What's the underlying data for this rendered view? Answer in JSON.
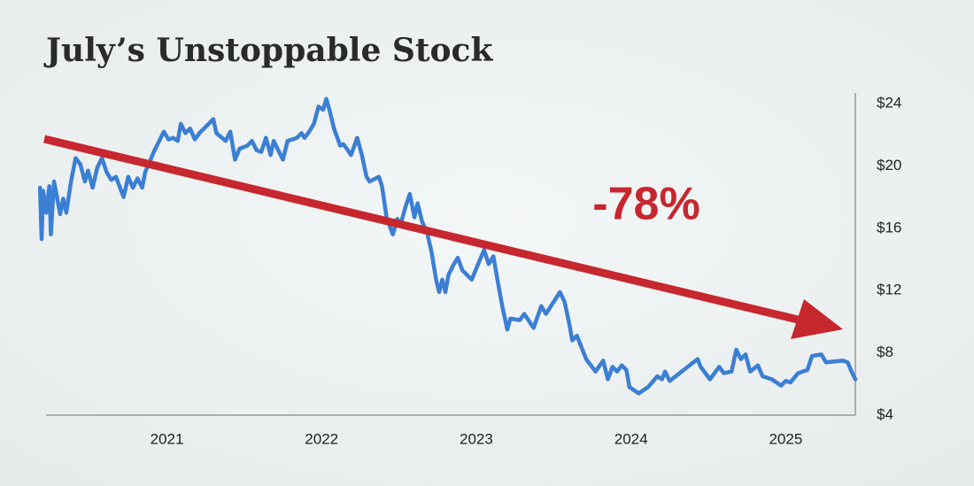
{
  "chart_data": {
    "type": "line",
    "title": "July’s Unstoppable Stock",
    "annotation": "-78%",
    "color": "#3b7fd4",
    "x": [
      2020.18,
      2020.19,
      2020.2,
      2020.22,
      2020.24,
      2020.25,
      2020.27,
      2020.31,
      2020.33,
      2020.35,
      2020.38,
      2020.41,
      2020.44,
      2020.47,
      2020.49,
      2020.52,
      2020.55,
      2020.58,
      2020.61,
      2020.64,
      2020.67,
      2020.72,
      2020.75,
      2020.78,
      2020.81,
      2020.84,
      2020.86,
      2020.89,
      2020.92,
      2020.95,
      2020.98,
      2021.01,
      2021.04,
      2021.07,
      2021.09,
      2021.12,
      2021.15,
      2021.18,
      2021.21,
      2021.27,
      2021.3,
      2021.32,
      2021.38,
      2021.41,
      2021.44,
      2021.47,
      2021.52,
      2021.55,
      2021.58,
      2021.61,
      2021.64,
      2021.67,
      2021.69,
      2021.72,
      2021.75,
      2021.78,
      2021.84,
      2021.87,
      2021.89,
      2021.92,
      2021.95,
      2021.98,
      2022.01,
      2022.03,
      2022.05,
      2022.08,
      2022.12,
      2022.14,
      2022.17,
      2022.19,
      2022.23,
      2022.26,
      2022.29,
      2022.31,
      2022.37,
      2022.39,
      2022.42,
      2022.46,
      2022.49,
      2022.51,
      2022.54,
      2022.57,
      2022.6,
      2022.62,
      2022.65,
      2022.68,
      2022.71,
      2022.74,
      2022.76,
      2022.78,
      2022.8,
      2022.82,
      2022.85,
      2022.88,
      2022.91,
      2022.97,
      2023.02,
      2023.05,
      2023.08,
      2023.11,
      2023.14,
      2023.17,
      2023.2,
      2023.22,
      2023.28,
      2023.31,
      2023.37,
      2023.42,
      2023.45,
      2023.54,
      2023.57,
      2023.6,
      2023.62,
      2023.65,
      2023.71,
      2023.77,
      2023.82,
      2023.85,
      2023.88,
      2023.91,
      2023.94,
      2023.97,
      2023.99,
      2024.05,
      2024.11,
      2024.17,
      2024.2,
      2024.22,
      2024.25,
      2024.34,
      2024.43,
      2024.45,
      2024.51,
      2024.57,
      2024.6,
      2024.65,
      2024.68,
      2024.71,
      2024.74,
      2024.77,
      2024.82,
      2024.85,
      2024.91,
      2024.97,
      2025.0,
      2025.03,
      2025.08,
      2025.14,
      2025.17,
      2025.23,
      2025.26,
      2025.37,
      2025.4,
      2025.43,
      2025.45
    ],
    "values": [
      18.6,
      15.3,
      18.4,
      17.0,
      18.7,
      15.6,
      19.0,
      16.9,
      17.9,
      17.0,
      19.0,
      20.5,
      20.1,
      19.0,
      19.7,
      18.6,
      19.9,
      20.5,
      19.6,
      19.1,
      19.3,
      18.0,
      19.3,
      18.6,
      19.2,
      18.6,
      19.6,
      20.3,
      21.0,
      21.6,
      22.2,
      21.7,
      21.8,
      21.6,
      22.7,
      22.1,
      22.4,
      21.7,
      22.1,
      22.7,
      23.0,
      22.1,
      21.6,
      22.2,
      20.4,
      21.1,
      21.3,
      21.6,
      21.0,
      20.9,
      21.8,
      20.7,
      21.6,
      21.0,
      20.4,
      21.6,
      21.8,
      22.1,
      21.8,
      22.2,
      22.7,
      23.8,
      23.6,
      24.3,
      23.6,
      22.4,
      21.3,
      21.4,
      21.0,
      20.7,
      21.8,
      20.7,
      19.3,
      19.0,
      19.3,
      18.7,
      16.7,
      15.6,
      16.6,
      16.2,
      17.3,
      18.2,
      16.7,
      17.6,
      16.4,
      15.8,
      14.5,
      12.7,
      11.9,
      12.7,
      11.9,
      13.0,
      13.6,
      14.1,
      13.3,
      12.7,
      13.9,
      14.6,
      13.7,
      14.2,
      12.5,
      10.9,
      9.5,
      10.2,
      10.1,
      10.5,
      9.6,
      11.0,
      10.5,
      11.9,
      11.3,
      9.9,
      8.8,
      9.1,
      7.6,
      6.8,
      7.5,
      6.3,
      7.1,
      6.8,
      7.2,
      6.9,
      5.8,
      5.4,
      5.8,
      6.5,
      6.3,
      6.8,
      6.2,
      6.9,
      7.6,
      7.1,
      6.3,
      7.1,
      6.7,
      6.8,
      8.2,
      7.6,
      7.9,
      6.8,
      7.2,
      6.5,
      6.3,
      5.9,
      6.2,
      6.1,
      6.7,
      6.9,
      7.8,
      7.9,
      7.4,
      7.5,
      7.4,
      6.7,
      6.3
    ],
    "xlim": [
      2020.15,
      2025.45
    ],
    "xticks": [
      2021,
      2022,
      2023,
      2024,
      2025
    ],
    "ylim": [
      4,
      24
    ],
    "yticks": [
      {
        "value": 4,
        "label": "$4"
      },
      {
        "value": 8,
        "label": "$8"
      },
      {
        "value": 12,
        "label": "$12"
      },
      {
        "value": 16,
        "label": "$16"
      },
      {
        "value": 20,
        "label": "$20"
      },
      {
        "value": 24,
        "label": "$24"
      }
    ]
  }
}
